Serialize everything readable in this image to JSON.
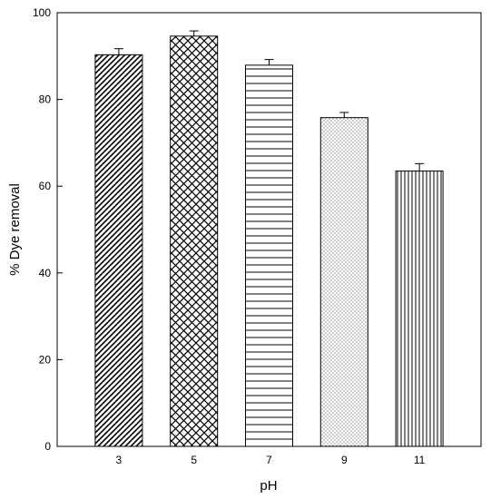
{
  "chart_data": {
    "type": "bar",
    "title": "",
    "xlabel": "pH",
    "ylabel": "% Dye removal",
    "categories": [
      "3",
      "5",
      "7",
      "9",
      "11"
    ],
    "values": [
      90.3,
      94.6,
      87.9,
      75.8,
      63.5
    ],
    "errors": [
      1.4,
      1.2,
      1.3,
      1.2,
      1.7
    ],
    "patterns": [
      "diagonal-hatch",
      "crosshatch",
      "horizontal-lines",
      "dots",
      "vertical-lines"
    ],
    "ylim": [
      0,
      100
    ],
    "yticks": [
      "0",
      "20",
      "40",
      "60",
      "80",
      "100"
    ],
    "grid": false,
    "colors": {
      "bar_stroke": "#000000",
      "fill_background": "#ffffff"
    }
  }
}
